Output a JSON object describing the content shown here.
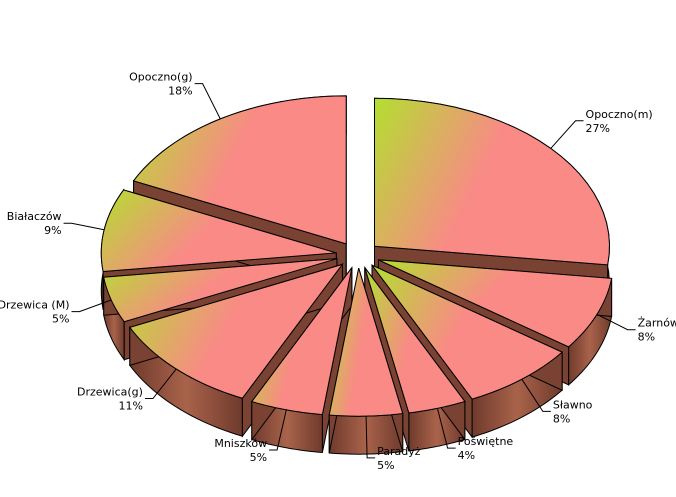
{
  "chart_data": {
    "type": "pie",
    "style": "3d-exploded",
    "categories": [
      "Opoczno(m)",
      "Żarnów",
      "Sławno",
      "Poświętne",
      "Paradyż",
      "Mniszków",
      "Drzewica(g)",
      "Drzewica (M)",
      "Białaczów",
      "Opoczno(g)"
    ],
    "values": [
      27,
      8,
      8,
      4,
      5,
      5,
      11,
      5,
      9,
      18
    ],
    "value_labels": [
      "27%",
      "8%",
      "8%",
      "4%",
      "5%",
      "5%",
      "11%",
      "5%",
      "9%",
      "18%"
    ],
    "colors": {
      "top_pink": "#f98a86",
      "top_green": "#b3df2f",
      "side_dark": "#6f3a2c",
      "side_light": "#a9634b",
      "outline": "#000000",
      "leader": "#000000"
    }
  }
}
